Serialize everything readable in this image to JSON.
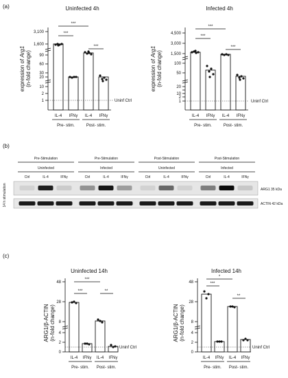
{
  "panel_labels": {
    "a": "(a)",
    "b": "(b)",
    "c": "(c)"
  },
  "units": {
    "arg1_expr_prefix": "expression of ",
    "arg1_gene": "Arg1",
    "fold": "(n-fold change)",
    "arg1_actin": "ARG1/β-ACTIN",
    "fold2": "(n-fold change)"
  },
  "ref_label": "Uninf Ctrl",
  "groups": {
    "pre": "Pre- stim.",
    "post": "Post- stim."
  },
  "categories": [
    "IL-4",
    "IFNγ",
    "IL-4",
    "IFNγ"
  ],
  "blot": {
    "side_label": "14 h stimulation",
    "top_headers": [
      "Pre-Stimulation",
      "Pre-Stimulation",
      "Post-Stimulation",
      "Post-Stimulation"
    ],
    "sub_headers": [
      "Uninfected",
      "Infected",
      "Uninfected",
      "Infected"
    ],
    "lanes": [
      "Ctrl",
      "IL-4",
      "IFNγ",
      "Ctrl",
      "IL-4",
      "IFNγ",
      "Ctrl",
      "IL-4",
      "IFNγ",
      "Ctrl",
      "IL-4",
      "IFNγ"
    ],
    "band_labels": [
      "ARG1 35 kDa",
      "ACTIN 42 kDa"
    ],
    "arg1_intensity": [
      0.05,
      0.9,
      0.08,
      0.35,
      0.95,
      0.3,
      0.05,
      0.55,
      0.05,
      0.45,
      1.0,
      0.1
    ]
  },
  "chart_data": [
    {
      "type": "bar",
      "title": "Uninfected 4h",
      "categories": [
        "IL-4",
        "IFNγ",
        "IL-4",
        "IFNγ"
      ],
      "values": [
        1600,
        20,
        1100,
        20
      ],
      "yticks": [
        "1",
        "2",
        "10",
        "20",
        "30",
        "60",
        "90",
        "1,600",
        "3,100"
      ],
      "significance": [
        "***",
        "***",
        "***"
      ]
    },
    {
      "type": "bar",
      "title": "Infected 4h",
      "categories": [
        "IL-4",
        "IFNγ",
        "IL-4",
        "IFNγ"
      ],
      "values": [
        1100,
        75,
        1000,
        58
      ],
      "yticks": [
        "1",
        "2",
        "10",
        "20",
        "50",
        "100",
        "1,500",
        "3,000",
        "4,500"
      ],
      "significance": [
        "***",
        "***",
        "***"
      ]
    },
    {
      "type": "bar",
      "title": "Uninfected 14h",
      "categories": [
        "IL-4",
        "IFNγ",
        "IL-4",
        "IFNγ"
      ],
      "values": [
        24,
        1.4,
        14,
        1
      ],
      "yticks": [
        "0",
        "2",
        "4",
        "8",
        "28",
        "48"
      ],
      "significance": [
        "***",
        "***",
        "**"
      ]
    },
    {
      "type": "bar",
      "title": "Infected 14h",
      "categories": [
        "IL-4",
        "IFNγ",
        "IL-4",
        "IFNγ"
      ],
      "values": [
        33,
        2.1,
        23,
        2.5
      ],
      "yticks": [
        "0",
        "2",
        "4",
        "8",
        "28",
        "48"
      ],
      "significance": [
        "***",
        "*",
        "**"
      ]
    }
  ]
}
